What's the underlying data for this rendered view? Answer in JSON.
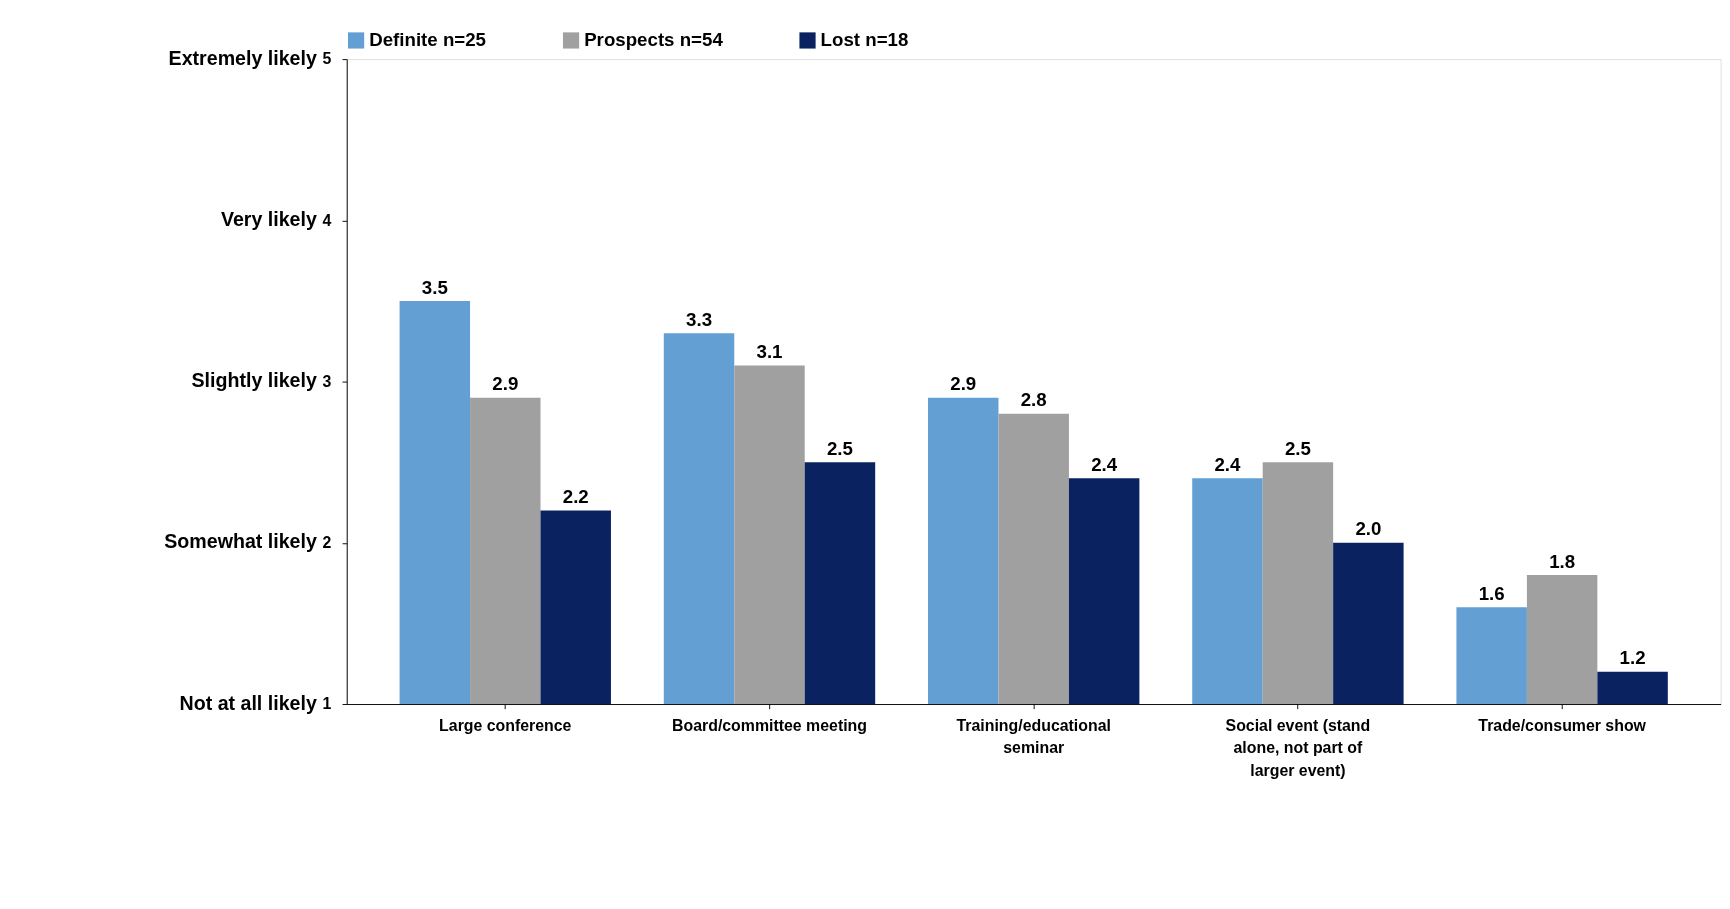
{
  "chart_data": {
    "type": "bar",
    "categories": [
      "Large conference",
      "Board/committee meeting",
      "Training/educational seminar",
      "Social event (stand alone, not part of larger event)",
      "Trade/consumer show"
    ],
    "series": [
      {
        "name": "Definite n=25",
        "color": "#639fd3",
        "values": [
          3.5,
          3.3,
          2.9,
          2.4,
          1.6
        ],
        "value_labels": [
          "3.5",
          "3.3",
          "2.9",
          "2.4",
          "1.6"
        ]
      },
      {
        "name": "Prospects n=54",
        "color": "#a0a0a0",
        "values": [
          2.9,
          3.1,
          2.8,
          2.5,
          1.8
        ],
        "value_labels": [
          "2.9",
          "3.1",
          "2.8",
          "2.5",
          "1.8"
        ]
      },
      {
        "name": "Lost n=18",
        "color": "#0a2260",
        "values": [
          2.2,
          2.5,
          2.4,
          2.0,
          1.2
        ],
        "value_labels": [
          "2.2",
          "2.5",
          "2.4",
          "2.0",
          "1.2"
        ]
      }
    ],
    "ylim": [
      1,
      5
    ],
    "yticks": [
      1,
      2,
      3,
      4,
      5
    ],
    "annotations": [
      "Not at all likely",
      "Somewhat likely",
      "Slightly likely",
      "Very likely",
      "Extremely likely"
    ],
    "grid": false,
    "legend": "top"
  }
}
